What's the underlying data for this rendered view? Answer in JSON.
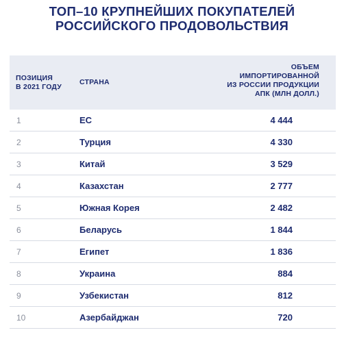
{
  "title": {
    "line1": "ТОП–10 КРУПНЕЙШИХ ПОКУПАТЕЛЕЙ",
    "line2": "РОССИЙСКОГО ПРОДОВОЛЬСТВИЯ"
  },
  "table": {
    "headers": {
      "position": [
        "ПОЗИЦИЯ",
        "В 2021 ГОДУ"
      ],
      "country": "СТРАНА",
      "value": [
        "ОБЪЕМ",
        "ИМПОРТИРОВАННОЙ",
        "ИЗ РОССИИ ПРОДУКЦИИ",
        "АПК (МЛН ДОЛЛ.)"
      ]
    },
    "rows": [
      {
        "pos": "1",
        "country": "ЕС",
        "value": "4 444"
      },
      {
        "pos": "2",
        "country": "Турция",
        "value": "4 330"
      },
      {
        "pos": "3",
        "country": "Китай",
        "value": "3 529"
      },
      {
        "pos": "4",
        "country": "Казахстан",
        "value": "2 777"
      },
      {
        "pos": "5",
        "country": "Южная Корея",
        "value": "2 482"
      },
      {
        "pos": "6",
        "country": "Беларусь",
        "value": "1 844"
      },
      {
        "pos": "7",
        "country": "Египет",
        "value": "1 836"
      },
      {
        "pos": "8",
        "country": "Украина",
        "value": "884"
      },
      {
        "pos": "9",
        "country": "Узбекистан",
        "value": "812"
      },
      {
        "pos": "10",
        "country": "Азербайджан",
        "value": "720"
      }
    ]
  },
  "colors": {
    "text": "#1d2b6f",
    "header_bg": "#e9ecf3",
    "muted": "#8a8f9c",
    "divider": "#d7dbe4"
  }
}
